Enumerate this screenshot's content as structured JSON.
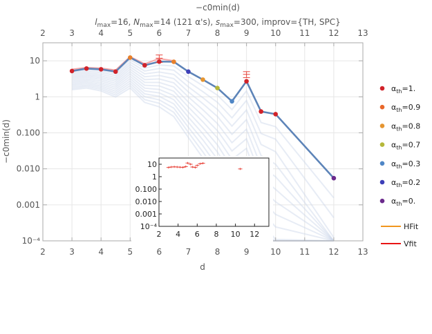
{
  "chart_data": {
    "type": "line",
    "title": "−c0min(d)",
    "subtitle_parts": [
      {
        "t": "l",
        "s": "i"
      },
      {
        "t": "max",
        "s": "sub"
      },
      {
        "t": "=16, ",
        "s": "n"
      },
      {
        "t": "N",
        "s": "i"
      },
      {
        "t": "max",
        "s": "sub"
      },
      {
        "t": "=14 (121 α's), ",
        "s": "n"
      },
      {
        "t": "s",
        "s": "i"
      },
      {
        "t": "max",
        "s": "sub"
      },
      {
        "t": "=300, improv={TH, SPC}",
        "s": "n"
      }
    ],
    "xlabel": "d",
    "ylabel": "−c0min(d)",
    "x_ticks": [
      "2",
      "3",
      "4",
      "5",
      "6",
      "7",
      "8",
      "9",
      "10",
      "11",
      "12",
      "13"
    ],
    "y_ticks": [
      "10⁻⁴",
      "0.001",
      "0.010",
      "0.100",
      "1",
      "10"
    ],
    "xlim": [
      2,
      13
    ],
    "ylim_log10": [
      -4,
      1.5
    ],
    "y_scale": "log",
    "grid": true,
    "main_series": {
      "name": "αth=1.",
      "x": [
        3,
        3.5,
        4,
        4.5,
        5,
        5.5,
        6,
        6.5,
        7,
        7.5,
        8,
        8.5,
        9,
        9.5,
        10,
        12
      ],
      "y": [
        5.2,
        6.1,
        5.8,
        5.0,
        12.3,
        7.5,
        9.5,
        9.4,
        5.0,
        3.0,
        1.75,
        0.75,
        2.7,
        0.39,
        0.33,
        0.0055
      ]
    },
    "fit_points": {
      "x": [
        3,
        3.5,
        4,
        4.5,
        5,
        5.5,
        6,
        6.5
      ],
      "y": [
        5.8,
        6.5,
        6.2,
        5.5,
        13.0,
        8.2,
        11.5,
        10.0
      ]
    },
    "error_bars": [
      {
        "x": 6,
        "y": 11.8,
        "lo": 9.0,
        "hi": 14.5
      },
      {
        "x": 9,
        "y": 4.2,
        "lo": 3.4,
        "hi": 5.0
      }
    ],
    "colored_points": [
      {
        "x": 3,
        "y": 5.2,
        "color": "#d1232a"
      },
      {
        "x": 3.5,
        "y": 6.1,
        "color": "#d1232a"
      },
      {
        "x": 4,
        "y": 5.8,
        "color": "#d1232a"
      },
      {
        "x": 4.5,
        "y": 5.0,
        "color": "#d1232a"
      },
      {
        "x": 5,
        "y": 12.3,
        "color": "#e8802a"
      },
      {
        "x": 5.5,
        "y": 7.5,
        "color": "#d1232a"
      },
      {
        "x": 6,
        "y": 9.5,
        "color": "#d1232a"
      },
      {
        "x": 6.5,
        "y": 9.4,
        "color": "#e8802a"
      },
      {
        "x": 7,
        "y": 5.0,
        "color": "#3d3fb8"
      },
      {
        "x": 7.5,
        "y": 3.0,
        "color": "#e59530"
      },
      {
        "x": 8,
        "y": 1.75,
        "color": "#b5b83a"
      },
      {
        "x": 8.5,
        "y": 0.75,
        "color": "#4f86c6"
      },
      {
        "x": 9,
        "y": 2.7,
        "color": "#d1232a"
      },
      {
        "x": 9.5,
        "y": 0.39,
        "color": "#d1232a"
      },
      {
        "x": 10,
        "y": 0.33,
        "color": "#d1232a"
      },
      {
        "x": 12,
        "y": 0.0055,
        "color": "#6b2a8c"
      }
    ],
    "legend": {
      "placement": "right",
      "points": [
        {
          "prefix": "α",
          "sub": "th",
          "suffix": "=1.",
          "color": "#d1232a"
        },
        {
          "prefix": "α",
          "sub": "th",
          "suffix": "=0.9",
          "color": "#e8672a"
        },
        {
          "prefix": "α",
          "sub": "th",
          "suffix": "=0.8",
          "color": "#e59530"
        },
        {
          "prefix": "α",
          "sub": "th",
          "suffix": "=0.7",
          "color": "#b5b83a"
        },
        {
          "prefix": "α",
          "sub": "th",
          "suffix": "=0.3",
          "color": "#4f86c6"
        },
        {
          "prefix": "α",
          "sub": "th",
          "suffix": "=0.2",
          "color": "#3d3fb8"
        },
        {
          "prefix": "α",
          "sub": "th",
          "suffix": "=0.",
          "color": "#6b2a8c"
        }
      ],
      "lines": [
        {
          "label": "HFit",
          "color": "#f0961e"
        },
        {
          "label": "Vfit",
          "color": "#e81414"
        }
      ]
    },
    "inset": {
      "x_ticks": [
        "2",
        "4",
        "6",
        "8",
        "10",
        "12"
      ],
      "y_ticks": [
        "10⁻⁴",
        "0.001",
        "0.010",
        "0.100",
        "1",
        "10"
      ],
      "xlim": [
        2,
        13.5
      ],
      "ylim_log10": [
        -4,
        1.5
      ],
      "points": [
        {
          "x": 3,
          "y": 5.5
        },
        {
          "x": 3.3,
          "y": 6.0
        },
        {
          "x": 3.6,
          "y": 6.2
        },
        {
          "x": 3.9,
          "y": 6.0
        },
        {
          "x": 4.2,
          "y": 5.8
        },
        {
          "x": 4.5,
          "y": 5.6
        },
        {
          "x": 4.8,
          "y": 6.5
        },
        {
          "x": 5.0,
          "y": 12.5
        },
        {
          "x": 5.3,
          "y": 10.0
        },
        {
          "x": 5.5,
          "y": 6.0
        },
        {
          "x": 5.8,
          "y": 5.5
        },
        {
          "x": 6.0,
          "y": 8.0
        },
        {
          "x": 6.3,
          "y": 11.0
        },
        {
          "x": 6.6,
          "y": 12.0
        },
        {
          "x": 10.5,
          "y": 4.2
        }
      ]
    },
    "colors": {
      "main_line": "#5d84b8",
      "fit_line": "#f4a6a6",
      "faint_line": "#c9d5e8",
      "error_bar": "#e8453c",
      "grid": "#e6e6e6",
      "frame": "#aaaaaa"
    }
  }
}
